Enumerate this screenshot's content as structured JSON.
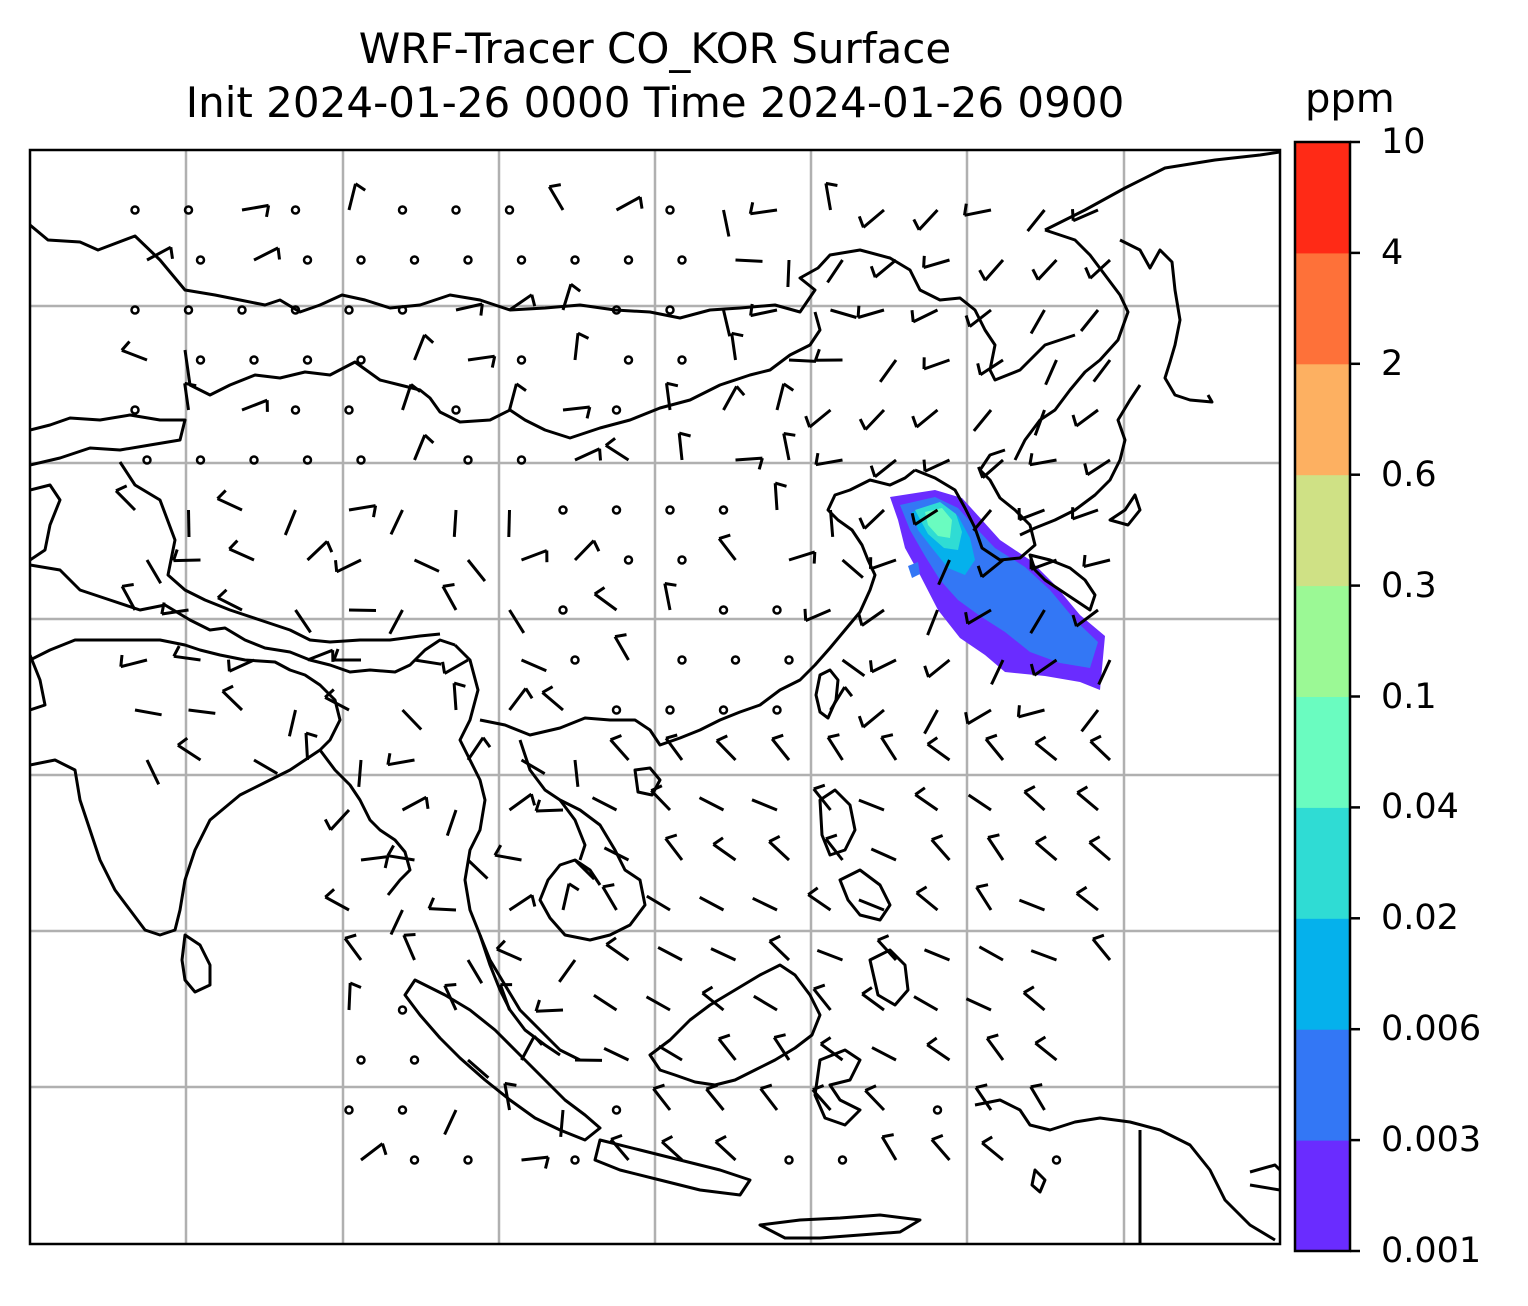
{
  "figure": {
    "title_line1": "WRF-Tracer CO_KOR Surface",
    "title_line2": "Init 2024-01-26 0000 Time 2024-01-26 0900"
  },
  "colorbar": {
    "unit": "ppm",
    "levels": [
      "0.001",
      "0.003",
      "0.006",
      "0.02",
      "0.04",
      "0.1",
      "0.3",
      "0.6",
      "2",
      "4",
      "10"
    ],
    "colors": [
      "#6a2cff",
      "#3377f5",
      "#05b1ec",
      "#2fdcd4",
      "#6afcc0",
      "#9bf995",
      "#cfe185",
      "#fdb061",
      "#fe7139",
      "#ff2a16"
    ]
  },
  "map": {
    "colors": {
      "coastline": "#000000",
      "gridlines": "#b0b0b0",
      "wind_barbs": "#000000",
      "plume_low": "#6a2cff",
      "plume_mid": "#3377f5",
      "plume_high": "#2fdcd4",
      "plume_peak": "#6afcc0"
    },
    "layers": [
      "coastlines-and-borders",
      "gridlines",
      "wind-barbs",
      "tracer-concentration-plume"
    ]
  }
}
